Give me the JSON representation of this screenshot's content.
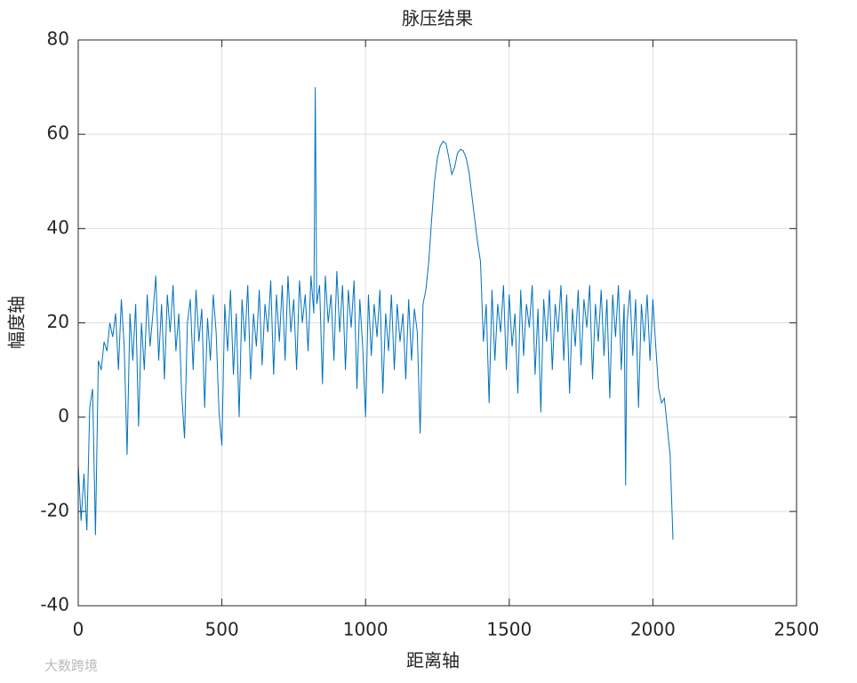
{
  "chart_data": {
    "type": "line",
    "title": "脉压结果",
    "x_label": "距离轴",
    "y_label": "幅度轴",
    "watermark": "大数跨境",
    "xlim": [
      0,
      2500
    ],
    "xticks": [
      0,
      500,
      1000,
      1500,
      2000,
      2500
    ],
    "ylim": [
      -40,
      80
    ],
    "yticks": [
      -40,
      -20,
      0,
      20,
      40,
      60,
      80
    ],
    "grid": true,
    "series": [
      {
        "color": "#0072bd",
        "x": [
          0,
          10,
          20,
          30,
          40,
          50,
          60,
          70,
          80,
          90,
          100,
          110,
          120,
          130,
          140,
          150,
          160,
          170,
          180,
          190,
          200,
          210,
          220,
          230,
          240,
          250,
          260,
          270,
          280,
          290,
          300,
          310,
          320,
          330,
          340,
          350,
          360,
          370,
          380,
          390,
          400,
          410,
          420,
          430,
          440,
          450,
          460,
          470,
          480,
          490,
          500,
          510,
          520,
          530,
          540,
          550,
          560,
          570,
          580,
          590,
          600,
          610,
          620,
          630,
          640,
          650,
          660,
          670,
          680,
          690,
          700,
          710,
          720,
          730,
          740,
          750,
          760,
          770,
          780,
          790,
          800,
          810,
          820,
          825,
          830,
          840,
          850,
          860,
          870,
          880,
          890,
          900,
          910,
          920,
          930,
          940,
          950,
          960,
          970,
          980,
          990,
          1000,
          1010,
          1020,
          1030,
          1040,
          1050,
          1060,
          1070,
          1080,
          1090,
          1100,
          1110,
          1120,
          1130,
          1140,
          1150,
          1160,
          1170,
          1180,
          1190,
          1200,
          1210,
          1220,
          1230,
          1240,
          1250,
          1260,
          1270,
          1280,
          1290,
          1300,
          1310,
          1320,
          1330,
          1340,
          1350,
          1360,
          1370,
          1380,
          1390,
          1400,
          1410,
          1420,
          1430,
          1440,
          1450,
          1460,
          1470,
          1480,
          1490,
          1500,
          1510,
          1520,
          1530,
          1540,
          1550,
          1560,
          1570,
          1580,
          1590,
          1600,
          1610,
          1620,
          1630,
          1640,
          1650,
          1660,
          1670,
          1680,
          1690,
          1700,
          1710,
          1720,
          1730,
          1740,
          1750,
          1760,
          1770,
          1780,
          1790,
          1800,
          1810,
          1820,
          1830,
          1840,
          1850,
          1860,
          1870,
          1880,
          1890,
          1900,
          1905,
          1910,
          1920,
          1930,
          1940,
          1950,
          1960,
          1970,
          1980,
          1990,
          2000,
          2010,
          2020,
          2030,
          2040,
          2050,
          2060,
          2070
        ],
        "values": [
          -10,
          -22,
          -12,
          -24,
          2,
          6,
          -25,
          12,
          10,
          16,
          14,
          20,
          17,
          22,
          10,
          25,
          15,
          -8,
          22,
          12,
          24,
          -2,
          20,
          10,
          26,
          15,
          22,
          30,
          12,
          24,
          8,
          26,
          18,
          28,
          14,
          22,
          5,
          -4.5,
          20,
          25,
          10,
          27,
          16,
          23,
          2,
          21,
          12,
          26,
          18,
          1,
          -6,
          24,
          14,
          27,
          9,
          22,
          0,
          25,
          16,
          28,
          8,
          22,
          15,
          27,
          11,
          24,
          18,
          29,
          9,
          26,
          16,
          28,
          12,
          30,
          18,
          25,
          10,
          29,
          20,
          26,
          14,
          30,
          22,
          70,
          24,
          28,
          7,
          30,
          20,
          26,
          12,
          31,
          18,
          28,
          10,
          27,
          19,
          29,
          6,
          25,
          15,
          0,
          26,
          13,
          24,
          17,
          27,
          5,
          22,
          14,
          26,
          10,
          24,
          16,
          22,
          8,
          25,
          12,
          23,
          18,
          -3.5,
          24,
          27,
          33,
          42,
          50,
          55,
          57.5,
          58.5,
          58,
          55,
          51.5,
          53,
          56,
          56.8,
          56.5,
          55,
          52,
          47,
          42,
          37,
          33,
          16,
          24,
          3,
          27,
          12,
          24,
          18,
          28,
          10,
          26,
          15,
          22,
          5,
          27,
          13,
          24,
          19,
          28,
          9,
          23,
          1,
          25,
          16,
          27,
          10,
          24,
          18,
          28,
          12,
          26,
          5,
          23,
          15,
          27,
          11,
          25,
          19,
          28,
          8,
          24,
          16,
          27,
          13,
          25,
          4,
          26,
          17,
          28,
          10,
          24,
          -14.5,
          20,
          27,
          13,
          25,
          2,
          24,
          16,
          26,
          12,
          25,
          15,
          6,
          3,
          4,
          -2,
          -8,
          -26
        ]
      }
    ]
  }
}
